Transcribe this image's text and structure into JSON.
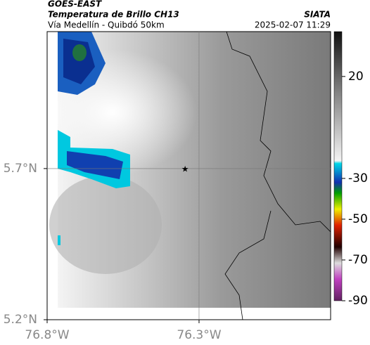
{
  "header": {
    "satellite": "GOES-EAST",
    "product": "Temperatura de Brillo CH13",
    "route": "Vía Medellín - Quibdó 50km",
    "source": "SIATA",
    "datetime": "2025-02-07 11:29"
  },
  "map": {
    "xlim": [
      -76.8,
      -75.867
    ],
    "ylim": [
      5.2,
      6.153
    ],
    "xticks": [
      {
        "value": -76.8,
        "label": "76.8°W"
      },
      {
        "value": -76.3,
        "label": "76.3°W"
      }
    ],
    "yticks": [
      {
        "value": 5.7,
        "label": "5.7°N"
      },
      {
        "value": 5.2,
        "label": "5.2°N"
      }
    ],
    "grid_lines": {
      "lon": -76.3,
      "lat": 5.7
    },
    "marker": {
      "lon": -76.346,
      "lat": 5.7
    }
  },
  "colorbar": {
    "lim": [
      -90,
      42
    ],
    "ticks": [
      20,
      -30,
      -50,
      -70,
      -90
    ]
  }
}
